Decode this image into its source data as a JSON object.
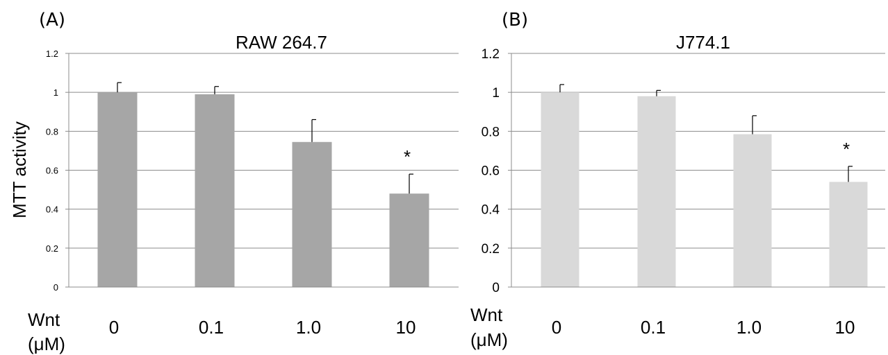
{
  "chart_data": [
    {
      "type": "bar",
      "panel": "(A)",
      "title": "RAW 264.7",
      "ylabel": "MTT activity",
      "xlabel": [
        "Wnt",
        "(μM)"
      ],
      "categories": [
        "0",
        "0.1",
        "1.0",
        "10"
      ],
      "values": [
        1.0,
        0.99,
        0.745,
        0.48
      ],
      "errors": [
        0.05,
        0.04,
        0.115,
        0.1
      ],
      "annotations": [
        "",
        "",
        "",
        "*"
      ],
      "ylim": [
        0,
        1.2
      ],
      "yticks": [
        "0",
        "0.2",
        "0.4",
        "0.6",
        "0.8",
        "1",
        "1.2"
      ],
      "bar_color": "#a6a6a6",
      "grid": true
    },
    {
      "type": "bar",
      "panel": "(B)",
      "title": "J774.1",
      "ylabel": "",
      "xlabel": [
        "Wnt",
        "(μM)"
      ],
      "categories": [
        "0",
        "0.1",
        "1.0",
        "10"
      ],
      "values": [
        1.0,
        0.98,
        0.785,
        0.54
      ],
      "errors": [
        0.04,
        0.03,
        0.095,
        0.08
      ],
      "annotations": [
        "",
        "",
        "",
        "*"
      ],
      "ylim": [
        0,
        1.2
      ],
      "yticks": [
        "0",
        "0.2",
        "0.4",
        "0.6",
        "0.8",
        "1",
        "1.2"
      ],
      "bar_color": "#d9d9d9",
      "grid": true
    }
  ]
}
